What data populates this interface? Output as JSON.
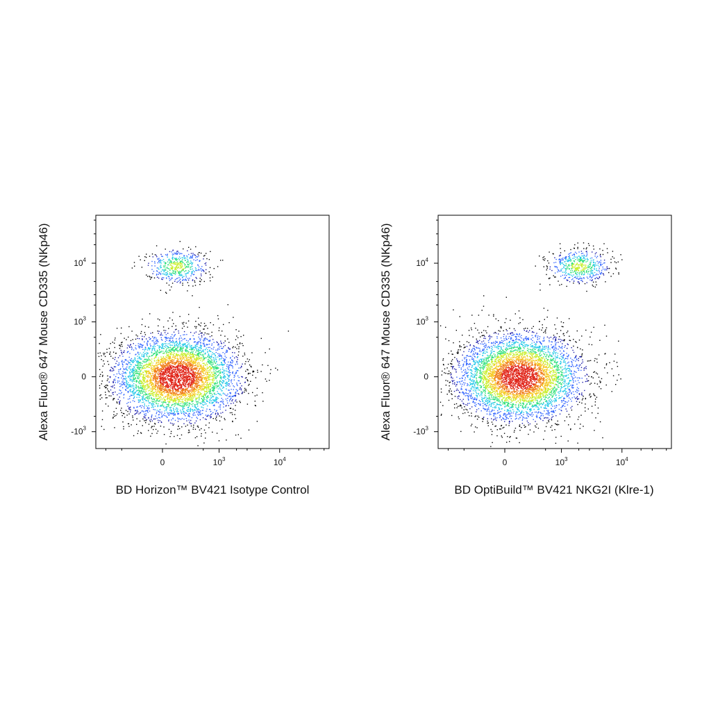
{
  "chart_data": [
    {
      "type": "scatter",
      "subtype": "flow-cytometry-density-dot-plot",
      "xlabel": "BD Horizon™ BV421 Isotype Control",
      "ylabel": "Alexa Fluor® 647 Mouse CD335 (NKp46)",
      "xscale": "biexponential",
      "yscale": "biexponential",
      "xlim": [
        -1500,
        60000
      ],
      "ylim": [
        -2000,
        60000
      ],
      "x_ticks": [
        {
          "base": "0",
          "exp": "",
          "value": 0
        },
        {
          "base": "10",
          "exp": "3",
          "value": 1000
        },
        {
          "base": "10",
          "exp": "4",
          "value": 10000
        }
      ],
      "y_ticks": [
        {
          "base": "-10",
          "exp": "3",
          "value": -1000
        },
        {
          "base": "0",
          "exp": "",
          "value": 0
        },
        {
          "base": "10",
          "exp": "3",
          "value": 1000
        },
        {
          "base": "10",
          "exp": "4",
          "value": 10000
        }
      ],
      "populations": [
        {
          "name": "",
          "center": [
            100,
            0
          ],
          "events": 5200,
          "density_colored": true
        },
        {
          "name": "",
          "center": [
            100,
            9000
          ],
          "events": 520,
          "density_colored": true
        }
      ],
      "colormap": [
        "#1a1aa8",
        "#2f63ff",
        "#21c7e8",
        "#2fe07a",
        "#c8ee2a",
        "#f6c81e",
        "#f07c18",
        "#e02418"
      ]
    },
    {
      "type": "scatter",
      "subtype": "flow-cytometry-density-dot-plot",
      "xlabel": "BD OptiBuild™ BV421 NKG2I (Klre-1)",
      "ylabel": "Alexa Fluor® 647 Mouse CD335 (NKp46)",
      "xscale": "biexponential",
      "yscale": "biexponential",
      "xlim": [
        -1500,
        60000
      ],
      "ylim": [
        -2000,
        60000
      ],
      "x_ticks": [
        {
          "base": "0",
          "exp": "",
          "value": 0
        },
        {
          "base": "10",
          "exp": "3",
          "value": 1000
        },
        {
          "base": "10",
          "exp": "4",
          "value": 10000
        }
      ],
      "y_ticks": [
        {
          "base": "-10",
          "exp": "3",
          "value": -1000
        },
        {
          "base": "0",
          "exp": "",
          "value": 0
        },
        {
          "base": "10",
          "exp": "3",
          "value": 1000
        },
        {
          "base": "10",
          "exp": "4",
          "value": 10000
        }
      ],
      "populations": [
        {
          "name": "",
          "center": [
            100,
            0
          ],
          "events": 5200,
          "density_colored": true
        },
        {
          "name": "",
          "center": [
            2000,
            9000
          ],
          "events": 560,
          "density_colored": true
        }
      ],
      "colormap": [
        "#1a1aa8",
        "#2f63ff",
        "#21c7e8",
        "#2fe07a",
        "#c8ee2a",
        "#f6c81e",
        "#f07c18",
        "#e02418"
      ]
    }
  ]
}
